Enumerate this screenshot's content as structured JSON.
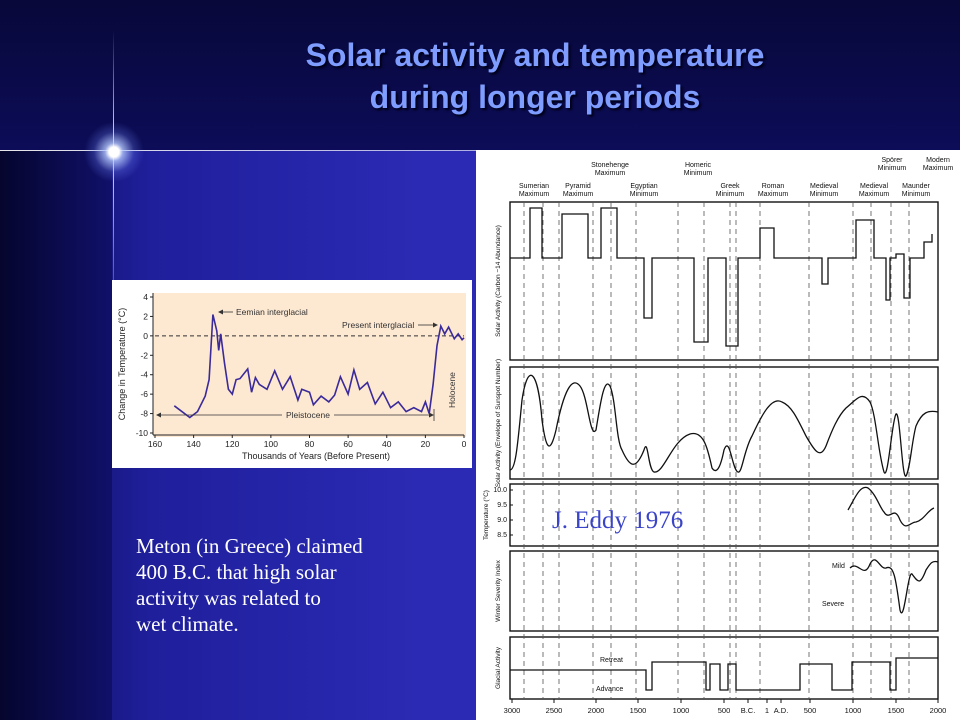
{
  "slide": {
    "title_lines": [
      "Solar activity and temperature",
      "during longer periods"
    ],
    "body_lines": [
      "Meton (in Greece) claimed",
      "400 B.C. that high solar",
      "activity was related to",
      "wet climate."
    ],
    "credit": "J. Eddy 1976",
    "colors": {
      "title": "#7f9dff",
      "background": "#2a2ab4",
      "credit": "#3a44c8"
    }
  },
  "chart_data": [
    {
      "type": "line",
      "xlabel": "Thousands of Years (Before Present)",
      "ylabel": "Change in Temperature (°C)",
      "xlim": [
        160,
        0
      ],
      "ylim": [
        -10,
        4
      ],
      "xticks": [
        160,
        140,
        120,
        100,
        80,
        60,
        40,
        20,
        0
      ],
      "yticks": [
        4,
        2,
        0,
        -2,
        -4,
        -6,
        -8,
        -10
      ],
      "grid": false,
      "annotations": [
        "Eemian interglacial",
        "Present interglacial",
        "Pleistocene",
        "Holocene"
      ],
      "series": [
        {
          "x": [
            150,
            142,
            138,
            134,
            132,
            130,
            128,
            127,
            126,
            124,
            122,
            120,
            118,
            116,
            112,
            110,
            108,
            106,
            102,
            98,
            94,
            90,
            86,
            84,
            80,
            78,
            74,
            70,
            67,
            64,
            60,
            57,
            54,
            50,
            46,
            42,
            38,
            34,
            30,
            26,
            22,
            20,
            18,
            16,
            14,
            12,
            10,
            8,
            5,
            3,
            1,
            0
          ],
          "y": [
            -7.2,
            -8.4,
            -7.8,
            -6.2,
            -4.5,
            2.2,
            0.5,
            -1.5,
            0.2,
            -2.8,
            -5.5,
            -6,
            -4.5,
            -4.4,
            -3.4,
            -5.8,
            -4.3,
            -5,
            -5.5,
            -3.6,
            -5.5,
            -4.2,
            -6.6,
            -5.5,
            -5.8,
            -7.1,
            -6.2,
            -6.8,
            -6.1,
            -4.2,
            -6,
            -3.5,
            -5.5,
            -4.8,
            -7,
            -5.8,
            -7.4,
            -6.8,
            -7.8,
            -7.4,
            -7.8,
            -6.8,
            -8,
            -5,
            -1,
            1,
            0.2,
            0.9,
            -0.3,
            0.2,
            -0.4,
            -0.2
          ]
        }
      ]
    },
    {
      "type": "line",
      "xlim": [
        3000,
        2000
      ],
      "xticks": [
        "3000",
        "2500",
        "2000",
        "1500",
        "1000",
        "500",
        "B.C.",
        "1",
        "A.D.",
        "500",
        "1000",
        "1500",
        "2000"
      ],
      "period_labels": [
        "Sumerian Maximum",
        "Pyramid Maximum",
        "Stonehenge Maximum",
        "Egyptian Minimum",
        "Homeric Minimum",
        "Greek Minimum",
        "Roman Maximum",
        "Medieval Minimum",
        "Medieval Maximum",
        "Spörer Minimum",
        "Maunder Minimum",
        "Modern Maximum"
      ],
      "panels": [
        {
          "ylabel": "Solar Activity (Carbon −14 Abundance)"
        },
        {
          "ylabel": "Solar Activity (Envelope of Sunspot Number)"
        },
        {
          "ylabel": "Temperature (°C)",
          "yticks": [
            "10.0",
            "9.5",
            "9.0",
            "8.5"
          ]
        },
        {
          "ylabel": "Winter Severity Index",
          "labels": [
            "Mild",
            "Severe"
          ]
        },
        {
          "ylabel": "Glacial Activity",
          "labels": [
            "Retreat",
            "Advance"
          ]
        }
      ]
    }
  ]
}
